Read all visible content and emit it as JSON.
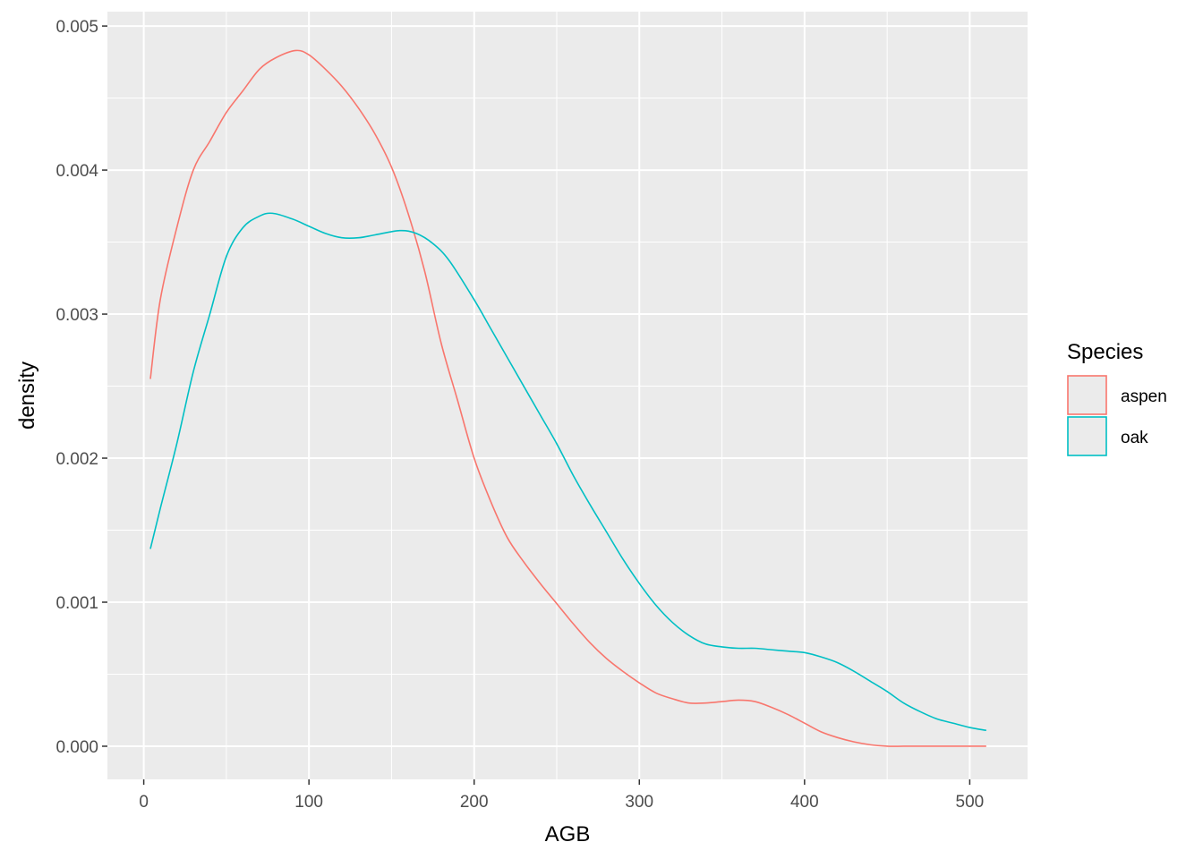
{
  "chart_data": {
    "type": "line",
    "xlabel": "AGB",
    "ylabel": "density",
    "xlim": [
      -22,
      535
    ],
    "ylim": [
      -0.00023,
      0.0051
    ],
    "x_ticks": [
      0,
      100,
      200,
      300,
      400,
      500
    ],
    "x_tick_labels": [
      "0",
      "100",
      "200",
      "300",
      "400",
      "500"
    ],
    "y_ticks": [
      0.0,
      0.001,
      0.002,
      0.003,
      0.004,
      0.005
    ],
    "y_tick_labels": [
      "0.000",
      "0.001",
      "0.002",
      "0.003",
      "0.004",
      "0.005"
    ],
    "grid": true,
    "legend": {
      "title": "Species",
      "position": "right"
    },
    "series": [
      {
        "name": "aspen",
        "color": "#F8766D",
        "x": [
          4,
          10,
          20,
          30,
          40,
          50,
          60,
          70,
          80,
          92,
          100,
          110,
          120,
          130,
          140,
          150,
          160,
          170,
          180,
          190,
          200,
          210,
          220,
          230,
          240,
          250,
          260,
          270,
          280,
          290,
          300,
          310,
          320,
          330,
          340,
          350,
          360,
          370,
          380,
          390,
          400,
          410,
          420,
          430,
          440,
          450,
          460,
          470,
          480,
          490,
          500,
          510
        ],
        "y": [
          0.00255,
          0.0031,
          0.0036,
          0.004,
          0.0042,
          0.0044,
          0.00455,
          0.0047,
          0.00478,
          0.00483,
          0.0048,
          0.0047,
          0.00458,
          0.00443,
          0.00425,
          0.00402,
          0.0037,
          0.0033,
          0.0028,
          0.0024,
          0.002,
          0.0017,
          0.00145,
          0.00128,
          0.00113,
          0.00099,
          0.00085,
          0.00072,
          0.00061,
          0.00052,
          0.00044,
          0.00037,
          0.00033,
          0.0003,
          0.0003,
          0.00031,
          0.00032,
          0.00031,
          0.00027,
          0.00022,
          0.00016,
          0.0001,
          6e-05,
          3e-05,
          1e-05,
          0.0,
          0.0,
          0.0,
          0.0,
          0.0,
          0.0,
          0.0
        ]
      },
      {
        "name": "oak",
        "color": "#00BFC4",
        "x": [
          4,
          10,
          20,
          30,
          40,
          50,
          60,
          70,
          78,
          90,
          100,
          110,
          120,
          130,
          140,
          155,
          165,
          175,
          185,
          200,
          210,
          220,
          230,
          240,
          250,
          260,
          270,
          280,
          290,
          300,
          310,
          320,
          330,
          340,
          350,
          360,
          370,
          380,
          390,
          400,
          410,
          420,
          430,
          440,
          450,
          460,
          470,
          480,
          490,
          500,
          510
        ],
        "y": [
          0.00137,
          0.00165,
          0.0021,
          0.0026,
          0.003,
          0.0034,
          0.0036,
          0.00368,
          0.0037,
          0.00366,
          0.00361,
          0.00356,
          0.00353,
          0.00353,
          0.00355,
          0.00358,
          0.00356,
          0.00349,
          0.00337,
          0.0031,
          0.0029,
          0.0027,
          0.0025,
          0.0023,
          0.0021,
          0.00188,
          0.00168,
          0.00149,
          0.0013,
          0.00113,
          0.00098,
          0.00086,
          0.00077,
          0.00071,
          0.00069,
          0.00068,
          0.00068,
          0.00067,
          0.00066,
          0.00065,
          0.00062,
          0.00058,
          0.00052,
          0.00045,
          0.00038,
          0.0003,
          0.00024,
          0.00019,
          0.00016,
          0.00013,
          0.00011
        ]
      }
    ]
  }
}
